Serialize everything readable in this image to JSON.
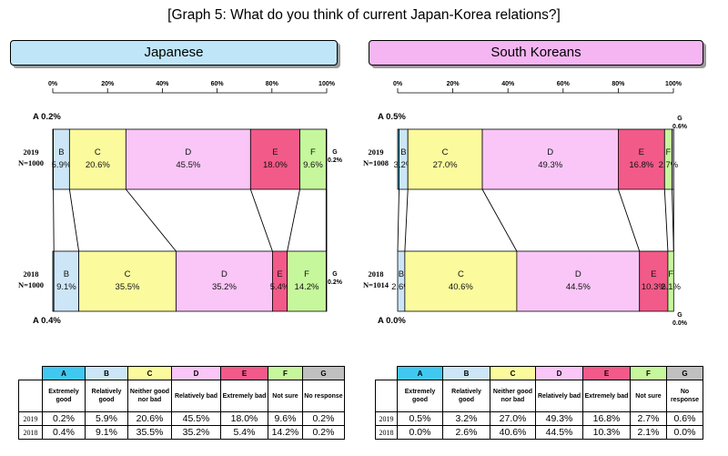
{
  "title": "[Graph 5: What do you think of current Japan-Korea relations?]",
  "axis_ticks": [
    "0%",
    "20%",
    "40%",
    "60%",
    "80%",
    "100%"
  ],
  "categories": [
    {
      "code": "A",
      "label": "Extremely good",
      "color": "#41c8f0"
    },
    {
      "code": "B",
      "label": "Relatively good",
      "color": "#cce6f7"
    },
    {
      "code": "C",
      "label": "Neither good nor bad",
      "color": "#fbfb9e"
    },
    {
      "code": "D",
      "label": "Relatively bad",
      "color": "#f9c6f7"
    },
    {
      "code": "E",
      "label": "Extremely bad",
      "color": "#f25a8a"
    },
    {
      "code": "F",
      "label": "Not sure",
      "color": "#c6f79c"
    },
    {
      "code": "G",
      "label": "No response",
      "color": "#c0c0c0"
    }
  ],
  "groups": [
    {
      "name": "Japanese",
      "header_color": "#bfe6f8",
      "rows": [
        {
          "year": "2019",
          "n": "N=1000",
          "values": [
            0.2,
            5.9,
            20.6,
            45.5,
            18.0,
            9.6,
            0.2
          ],
          "labels": [
            "0.2%",
            "5.9%",
            "20.6%",
            "45.5%",
            "18.0%",
            "9.6%",
            "0.2%"
          ]
        },
        {
          "year": "2018",
          "n": "N=1000",
          "values": [
            0.4,
            9.1,
            35.5,
            35.2,
            5.4,
            14.2,
            0.2
          ],
          "labels": [
            "0.4%",
            "9.1%",
            "35.5%",
            "35.2%",
            "5.4%",
            "14.2%",
            "0.2%"
          ]
        }
      ]
    },
    {
      "name": "South Koreans",
      "header_color": "#f4b5f2",
      "rows": [
        {
          "year": "2019",
          "n": "N=1008",
          "values": [
            0.5,
            3.2,
            27.0,
            49.3,
            16.8,
            2.7,
            0.6
          ],
          "labels": [
            "0.5%",
            "3.2%",
            "27.0%",
            "49.3%",
            "16.8%",
            "2.7%",
            "0.6%"
          ]
        },
        {
          "year": "2018",
          "n": "N=1014",
          "values": [
            0.0,
            2.6,
            40.6,
            44.5,
            10.3,
            2.1,
            0.0
          ],
          "labels": [
            "0.0%",
            "2.6%",
            "40.6%",
            "44.5%",
            "10.3%",
            "2.1%",
            "0.0%"
          ]
        }
      ]
    }
  ],
  "chart_data": [
    {
      "type": "bar",
      "stacked": true,
      "orientation": "horizontal",
      "title": "Japanese",
      "categories": [
        "2019 N=1000",
        "2018 N=1000"
      ],
      "xlim": [
        0,
        100
      ],
      "series": [
        {
          "name": "A",
          "values": [
            0.2,
            0.4
          ]
        },
        {
          "name": "B",
          "values": [
            5.9,
            9.1
          ]
        },
        {
          "name": "C",
          "values": [
            20.6,
            35.5
          ]
        },
        {
          "name": "D",
          "values": [
            45.5,
            35.2
          ]
        },
        {
          "name": "E",
          "values": [
            18.0,
            5.4
          ]
        },
        {
          "name": "F",
          "values": [
            9.6,
            14.2
          ]
        },
        {
          "name": "G",
          "values": [
            0.2,
            0.2
          ]
        }
      ]
    },
    {
      "type": "bar",
      "stacked": true,
      "orientation": "horizontal",
      "title": "South Koreans",
      "categories": [
        "2019 N=1008",
        "2018 N=1014"
      ],
      "xlim": [
        0,
        100
      ],
      "series": [
        {
          "name": "A",
          "values": [
            0.5,
            0.0
          ]
        },
        {
          "name": "B",
          "values": [
            3.2,
            2.6
          ]
        },
        {
          "name": "C",
          "values": [
            27.0,
            40.6
          ]
        },
        {
          "name": "D",
          "values": [
            49.3,
            44.5
          ]
        },
        {
          "name": "E",
          "values": [
            16.8,
            10.3
          ]
        },
        {
          "name": "F",
          "values": [
            2.7,
            2.1
          ]
        },
        {
          "name": "G",
          "values": [
            0.6,
            0.0
          ]
        }
      ]
    }
  ]
}
